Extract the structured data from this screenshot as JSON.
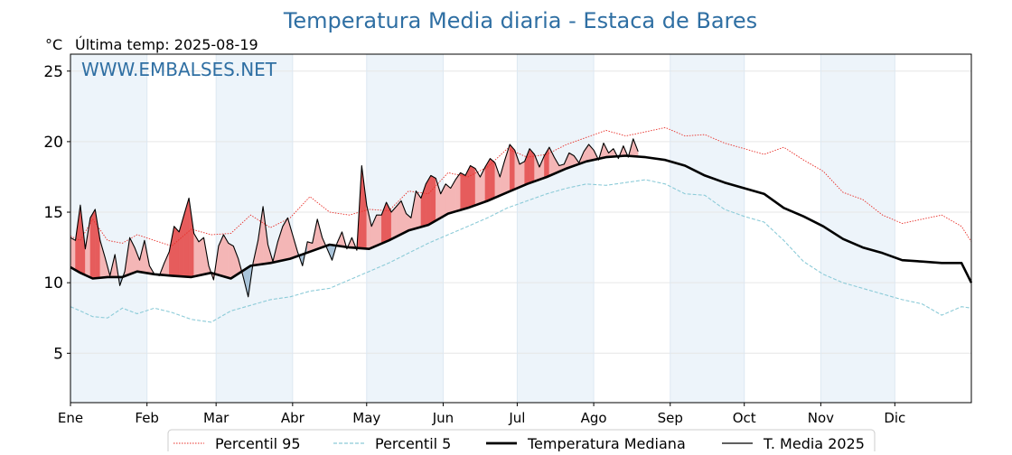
{
  "chart_data": {
    "type": "line",
    "title": "Temperatura Media diaria - Estaca de Bares",
    "unit_label": "°C",
    "last_temp_label": "Última temp: 2025-08-19",
    "watermark": "WWW.EMBALSES.NET",
    "ylim": [
      1.5,
      26.2
    ],
    "yticks": [
      5,
      10,
      15,
      20,
      25
    ],
    "xlim": [
      1,
      366
    ],
    "months": [
      {
        "label": "Ene",
        "start_day": 1
      },
      {
        "label": "Feb",
        "start_day": 32
      },
      {
        "label": "Mar",
        "start_day": 60
      },
      {
        "label": "Abr",
        "start_day": 91
      },
      {
        "label": "May",
        "start_day": 121
      },
      {
        "label": "Jun",
        "start_day": 152
      },
      {
        "label": "Jul",
        "start_day": 182
      },
      {
        "label": "Ago",
        "start_day": 213
      },
      {
        "label": "Sep",
        "start_day": 244
      },
      {
        "label": "Oct",
        "start_day": 274
      },
      {
        "label": "Nov",
        "start_day": 305
      },
      {
        "label": "Dic",
        "start_day": 335
      }
    ],
    "grid": true,
    "legend_position": "bottom-center",
    "colors": {
      "p95": "#e8302a",
      "p5": "#8ccbd8",
      "median": "#000000",
      "t2025": "#000000",
      "above_fill": "#f4b6b6",
      "above_fill_strong": "#e65c5c",
      "below_fill": "#7aa3c4",
      "band_shade": "#edf4fa",
      "title": "#2f6fa3"
    },
    "series": [
      {
        "name": "Percentil 95",
        "style": "dotted",
        "x": [
          1,
          5,
          10,
          16,
          22,
          28,
          35,
          42,
          50,
          58,
          66,
          74,
          82,
          90,
          98,
          106,
          114,
          122,
          130,
          138,
          146,
          154,
          162,
          170,
          178,
          186,
          194,
          202,
          210,
          218,
          226,
          234,
          242,
          250,
          258,
          266,
          274,
          282,
          290,
          298,
          306,
          314,
          322,
          330,
          338,
          346,
          354,
          362,
          366
        ],
        "y": [
          13.3,
          13.0,
          14.5,
          13.0,
          12.8,
          13.4,
          13.0,
          12.6,
          13.8,
          13.4,
          13.5,
          14.8,
          13.9,
          14.6,
          16.1,
          15.0,
          14.8,
          15.2,
          15.1,
          16.5,
          16.3,
          17.8,
          17.5,
          18.2,
          19.5,
          18.9,
          19.1,
          19.8,
          20.3,
          20.8,
          20.4,
          20.7,
          21.0,
          20.4,
          20.5,
          19.9,
          19.5,
          19.1,
          19.6,
          18.7,
          17.9,
          16.4,
          15.9,
          14.8,
          14.2,
          14.5,
          14.8,
          14.0,
          12.9
        ]
      },
      {
        "name": "Percentil 5",
        "style": "dashed",
        "x": [
          1,
          5,
          10,
          16,
          22,
          28,
          35,
          42,
          50,
          58,
          66,
          74,
          82,
          90,
          98,
          106,
          114,
          122,
          130,
          138,
          146,
          154,
          162,
          170,
          178,
          186,
          194,
          202,
          210,
          218,
          226,
          234,
          242,
          250,
          258,
          266,
          274,
          282,
          290,
          298,
          306,
          314,
          322,
          330,
          338,
          346,
          354,
          362,
          366
        ],
        "y": [
          8.3,
          8.0,
          7.6,
          7.5,
          8.2,
          7.8,
          8.2,
          7.9,
          7.4,
          7.2,
          8.0,
          8.4,
          8.8,
          9.0,
          9.4,
          9.6,
          10.2,
          10.8,
          11.4,
          12.1,
          12.8,
          13.4,
          14.0,
          14.6,
          15.3,
          15.8,
          16.3,
          16.7,
          17.0,
          16.9,
          17.1,
          17.3,
          17.0,
          16.3,
          16.2,
          15.2,
          14.7,
          14.3,
          13.0,
          11.5,
          10.6,
          10.0,
          9.6,
          9.2,
          8.8,
          8.5,
          7.7,
          8.3,
          8.2
        ]
      },
      {
        "name": "Temperatura Mediana",
        "style": "solid-thick",
        "x": [
          1,
          5,
          10,
          16,
          22,
          28,
          35,
          42,
          50,
          58,
          66,
          74,
          82,
          90,
          98,
          106,
          114,
          122,
          130,
          138,
          146,
          154,
          162,
          170,
          178,
          186,
          194,
          202,
          210,
          218,
          226,
          234,
          242,
          250,
          258,
          266,
          274,
          282,
          290,
          298,
          306,
          314,
          322,
          330,
          338,
          346,
          354,
          362,
          366
        ],
        "y": [
          11.1,
          10.7,
          10.3,
          10.4,
          10.4,
          10.8,
          10.6,
          10.5,
          10.4,
          10.7,
          10.3,
          11.2,
          11.4,
          11.7,
          12.2,
          12.7,
          12.5,
          12.4,
          13.0,
          13.7,
          14.1,
          14.9,
          15.3,
          15.8,
          16.4,
          17.0,
          17.5,
          18.1,
          18.6,
          18.9,
          19.0,
          18.9,
          18.7,
          18.3,
          17.6,
          17.1,
          16.7,
          16.3,
          15.3,
          14.7,
          14.0,
          13.1,
          12.5,
          12.1,
          11.6,
          11.5,
          11.4,
          11.4,
          10.0
        ]
      },
      {
        "name": "T. Media 2025",
        "style": "solid-thin",
        "x": [
          1,
          3,
          5,
          7,
          9,
          11,
          13,
          15,
          17,
          19,
          21,
          23,
          25,
          27,
          29,
          31,
          33,
          35,
          37,
          39,
          41,
          43,
          45,
          47,
          49,
          51,
          53,
          55,
          57,
          59,
          61,
          63,
          65,
          67,
          69,
          71,
          73,
          75,
          77,
          79,
          81,
          83,
          85,
          87,
          89,
          91,
          93,
          95,
          97,
          99,
          101,
          103,
          105,
          107,
          109,
          111,
          113,
          115,
          117,
          119,
          121,
          123,
          125,
          127,
          129,
          131,
          133,
          135,
          137,
          139,
          141,
          143,
          145,
          147,
          149,
          151,
          153,
          155,
          157,
          159,
          161,
          163,
          165,
          167,
          169,
          171,
          173,
          175,
          177,
          179,
          181,
          183,
          185,
          187,
          189,
          191,
          193,
          195,
          197,
          199,
          201,
          203,
          205,
          207,
          209,
          211,
          213,
          215,
          217,
          219,
          221,
          223,
          225,
          227,
          229,
          231
        ],
        "y": [
          13.2,
          13.0,
          15.5,
          12.4,
          14.6,
          15.2,
          13.0,
          11.8,
          10.5,
          12.0,
          9.8,
          10.8,
          13.2,
          12.5,
          11.6,
          13.0,
          11.2,
          10.6,
          10.5,
          11.4,
          12.2,
          14.0,
          13.6,
          14.8,
          16.0,
          13.5,
          12.9,
          13.2,
          11.2,
          10.2,
          12.6,
          13.4,
          12.8,
          12.6,
          11.7,
          10.4,
          9.0,
          11.4,
          13.0,
          15.4,
          12.7,
          11.5,
          12.9,
          14.0,
          14.6,
          13.4,
          12.2,
          11.2,
          12.9,
          12.8,
          14.5,
          13.2,
          12.4,
          11.6,
          12.8,
          13.6,
          12.4,
          13.2,
          12.3,
          18.3,
          15.5,
          14.0,
          14.8,
          14.8,
          15.7,
          15.0,
          15.4,
          15.8,
          14.9,
          14.6,
          16.5,
          16.0,
          17.0,
          17.6,
          17.4,
          16.3,
          17.0,
          16.7,
          17.3,
          17.8,
          17.6,
          18.3,
          18.1,
          17.5,
          18.2,
          18.8,
          18.5,
          17.5,
          18.7,
          19.8,
          19.4,
          18.4,
          18.6,
          19.5,
          19.1,
          18.2,
          19.0,
          19.6,
          18.9,
          18.3,
          18.4,
          19.2,
          19.0,
          18.5,
          19.3,
          19.8,
          19.4,
          18.7,
          19.9,
          19.2,
          19.5,
          18.8,
          19.7,
          18.9,
          20.2,
          19.3
        ]
      }
    ]
  },
  "legend": [
    {
      "label": "Percentil 95",
      "style": "dotted",
      "color": "#e8302a"
    },
    {
      "label": "Percentil 5",
      "style": "dashed",
      "color": "#8ccbd8"
    },
    {
      "label": "Temperatura Mediana",
      "style": "thick",
      "color": "#000000"
    },
    {
      "label": "T. Media 2025",
      "style": "thin",
      "color": "#000000"
    }
  ]
}
